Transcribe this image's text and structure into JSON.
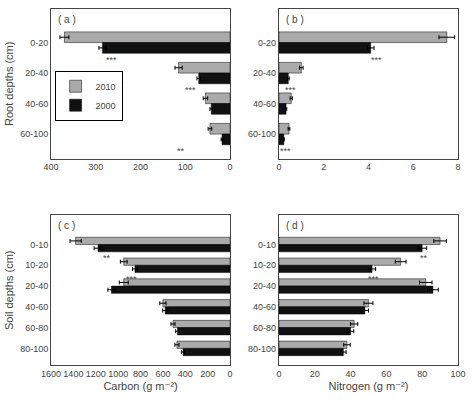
{
  "chart_data": [
    {
      "type": "bar",
      "orientation": "horizontal",
      "grid": false,
      "legend": "left",
      "title": "( a )",
      "ylabel": "Root depths (cm)",
      "categories": [
        "0-20",
        "20-40",
        "40-60",
        "60-100"
      ],
      "series": [
        {
          "name": "2010",
          "color": "#aaaaaa",
          "values": [
            370,
            115,
            55,
            45
          ],
          "errors": [
            10,
            8,
            5,
            4
          ]
        },
        {
          "name": "2000",
          "color": "#111111",
          "values": [
            285,
            70,
            42,
            18
          ],
          "errors": [
            8,
            4,
            3,
            2
          ]
        }
      ],
      "xlim": [
        400,
        0
      ],
      "xticks": [
        400,
        300,
        200,
        100,
        0
      ],
      "annotations": [
        {
          "text": "***",
          "x": 265,
          "category": "0-20"
        },
        {
          "text": "***",
          "x": 88,
          "category": "20-40"
        },
        {
          "text": "**",
          "x": 110,
          "category": "60-100"
        }
      ]
    },
    {
      "type": "bar",
      "orientation": "horizontal",
      "grid": false,
      "title": "( b )",
      "categories": [
        "0-20",
        "20-40",
        "40-60",
        "60-100"
      ],
      "series": [
        {
          "name": "2010",
          "color": "#aaaaaa",
          "values": [
            7.5,
            1.0,
            0.55,
            0.45
          ],
          "errors": [
            0.35,
            0.08,
            0.05,
            0.04
          ]
        },
        {
          "name": "2000",
          "color": "#111111",
          "values": [
            4.1,
            0.42,
            0.32,
            0.22
          ],
          "errors": [
            0.15,
            0.04,
            0.03,
            0.02
          ]
        }
      ],
      "xlim": [
        0,
        8
      ],
      "xticks": [
        0,
        2,
        4,
        6,
        8
      ],
      "annotations": [
        {
          "text": "***",
          "x": 4.35,
          "category": "0-20"
        },
        {
          "text": "***",
          "x": 0.52,
          "category": "20-40"
        },
        {
          "text": "***",
          "x": 0.28,
          "category": "60-100"
        }
      ]
    },
    {
      "type": "bar",
      "orientation": "horizontal",
      "grid": false,
      "title": "( c )",
      "ylabel": "Soil depths (cm)",
      "xlabel": "Carbon (g m⁻²)",
      "categories": [
        "0-10",
        "10-20",
        "20-40",
        "40-60",
        "60-80",
        "80-100"
      ],
      "series": [
        {
          "name": "2010",
          "color": "#aaaaaa",
          "values": [
            1380,
            950,
            950,
            600,
            510,
            475
          ],
          "errors": [
            50,
            30,
            40,
            28,
            18,
            18
          ]
        },
        {
          "name": "2000",
          "color": "#111111",
          "values": [
            1180,
            850,
            1060,
            580,
            470,
            420
          ],
          "errors": [
            35,
            22,
            32,
            22,
            16,
            15
          ]
        }
      ],
      "xlim": [
        1600,
        0
      ],
      "xticks": [
        1600,
        1400,
        1200,
        1000,
        800,
        600,
        400,
        200,
        0
      ],
      "annotations": [
        {
          "text": "**",
          "x": 1100,
          "category": "0-10"
        },
        {
          "text": "***",
          "x": 880,
          "category": "10-20"
        }
      ]
    },
    {
      "type": "bar",
      "orientation": "horizontal",
      "grid": false,
      "title": "( d )",
      "xlabel": "Nitrogen (g m⁻²)",
      "categories": [
        "0-10",
        "10-20",
        "20-40",
        "40-60",
        "60-80",
        "80-100"
      ],
      "series": [
        {
          "name": "2010",
          "color": "#aaaaaa",
          "values": [
            90,
            68,
            82,
            50,
            42,
            38
          ],
          "errors": [
            3.5,
            3,
            3.5,
            2.5,
            2,
            1.8
          ]
        },
        {
          "name": "2000",
          "color": "#111111",
          "values": [
            80,
            52,
            86,
            48,
            40,
            36
          ],
          "errors": [
            2.5,
            2,
            3,
            2,
            1.8,
            1.5
          ]
        }
      ],
      "xlim": [
        0,
        100
      ],
      "xticks": [
        0,
        20,
        40,
        60,
        80,
        100
      ],
      "annotations": [
        {
          "text": "**",
          "x": 81,
          "category": "0-10"
        },
        {
          "text": "***",
          "x": 53,
          "category": "10-20"
        }
      ]
    }
  ]
}
